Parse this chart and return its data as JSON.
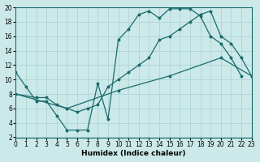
{
  "xlabel": "Humidex (Indice chaleur)",
  "bg_color": "#cce9e9",
  "line_color": "#1a6b6b",
  "grid_color": "#add4d4",
  "xlim": [
    0,
    23
  ],
  "ylim": [
    2,
    20
  ],
  "xticks": [
    0,
    1,
    2,
    3,
    4,
    5,
    6,
    7,
    8,
    9,
    10,
    11,
    12,
    13,
    14,
    15,
    16,
    17,
    18,
    19,
    20,
    21,
    22,
    23
  ],
  "yticks": [
    2,
    4,
    6,
    8,
    10,
    12,
    14,
    16,
    18,
    20
  ],
  "curve_upper_x": [
    0,
    1,
    2,
    3,
    4,
    5,
    6,
    7,
    8,
    9,
    10,
    11,
    12,
    13,
    14,
    15,
    16,
    17,
    18,
    19,
    20,
    21,
    22
  ],
  "curve_upper_y": [
    11,
    9,
    7,
    7,
    5,
    3,
    3,
    3,
    9.5,
    4.5,
    15.5,
    17,
    19.0,
    19.5,
    18.5,
    19.8,
    19.8,
    19.8,
    18.8,
    16,
    15,
    13,
    10.5
  ],
  "curve_mid_x": [
    0,
    2,
    3,
    4,
    5,
    6,
    7,
    8,
    9,
    10,
    11,
    12,
    13,
    14,
    15,
    16,
    17,
    18,
    19,
    20,
    21,
    22,
    23
  ],
  "curve_mid_y": [
    8,
    7.5,
    7.5,
    6.5,
    6,
    5.5,
    6,
    6.5,
    9,
    10,
    11,
    12,
    13,
    15.5,
    16,
    17,
    18,
    19,
    19.5,
    16,
    15,
    13,
    10.5
  ],
  "curve_low_x": [
    0,
    5,
    10,
    15,
    20,
    23
  ],
  "curve_low_y": [
    8,
    6,
    8.5,
    10.5,
    13,
    10.5
  ],
  "marker_size": 2.8,
  "linewidth": 0.9
}
